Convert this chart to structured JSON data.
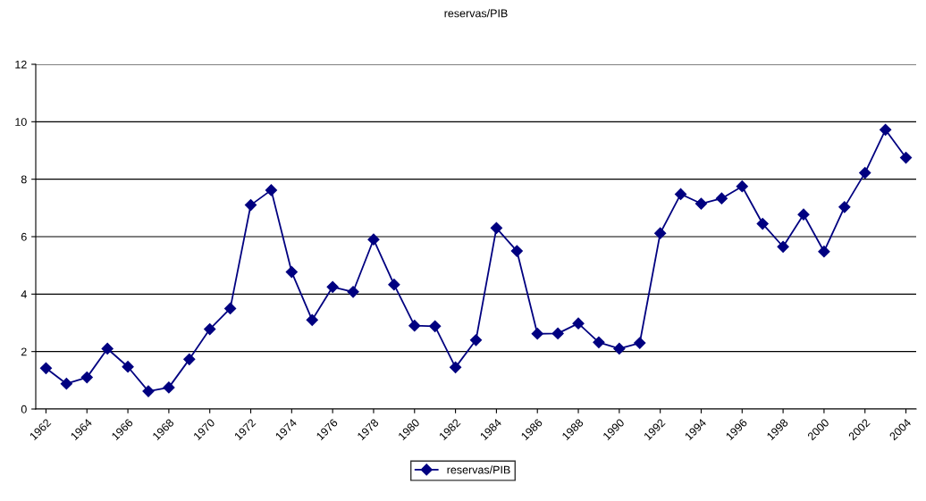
{
  "chart_data": {
    "type": "line",
    "title": "reservas/PIB",
    "categories": [
      "1962",
      null,
      "1964",
      null,
      "1966",
      null,
      "1968",
      null,
      "1970",
      null,
      "1972",
      null,
      "1974",
      null,
      "1976",
      null,
      "1978",
      null,
      "1980",
      null,
      "1982",
      null,
      "1984",
      null,
      "1986",
      null,
      "1988",
      null,
      "1990",
      null,
      "1992",
      null,
      "1994",
      null,
      "1996",
      null,
      "1998",
      null,
      "2000",
      null,
      "2002",
      null,
      "2004"
    ],
    "series": [
      {
        "name": "reservas/PIB",
        "color": "#000080",
        "values": [
          1.42,
          0.88,
          1.1,
          2.1,
          1.47,
          0.62,
          0.75,
          1.73,
          2.78,
          3.5,
          7.1,
          7.62,
          4.77,
          3.1,
          4.25,
          4.08,
          5.9,
          4.33,
          2.9,
          2.88,
          1.45,
          2.4,
          6.3,
          5.5,
          2.62,
          2.63,
          2.98,
          2.32,
          2.1,
          2.3,
          6.12,
          7.48,
          7.15,
          7.33,
          7.75,
          6.45,
          5.65,
          6.77,
          5.48,
          7.03,
          8.22,
          9.72,
          8.75
        ]
      }
    ],
    "ylim": [
      0,
      12
    ],
    "yticks": [
      0,
      2,
      4,
      6,
      8,
      10,
      12
    ],
    "grid": "y",
    "legend": "bottom",
    "marker": "diamond",
    "line_style": "solid"
  }
}
